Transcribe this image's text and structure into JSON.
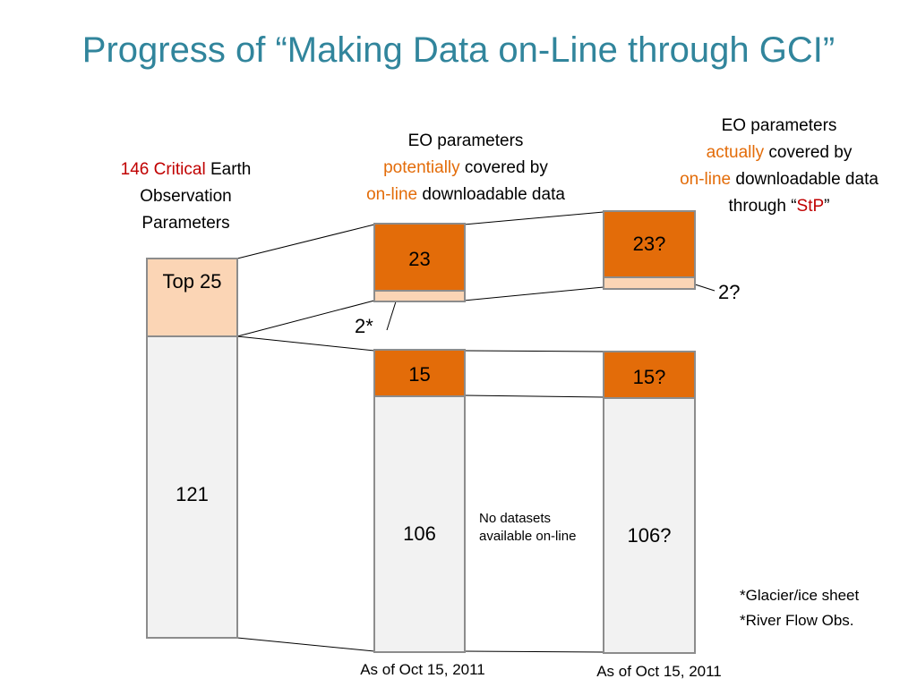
{
  "title": "Progress of “Making Data on-Line through GCI”",
  "left_header": {
    "line1_red": "146 Critical",
    "line1_rest": " Earth",
    "line2": "Observation",
    "line3": "Parameters"
  },
  "mid_header": {
    "line1": "EO parameters",
    "line2_orange": "potentially",
    "line2_rest": " covered by",
    "line3_orange": "on-line",
    "line3_rest": " downloadable data"
  },
  "right_header": {
    "line1": "EO parameters",
    "line2_orange": "actually",
    "line2_rest": " covered by",
    "line3_orange": "on-line",
    "line3_rest": " downloadable data",
    "line4_pre": "through “",
    "line4_red": "StP",
    "line4_post": "”"
  },
  "left_bar": {
    "top_label": "Top 25",
    "bottom_value": "121"
  },
  "mid_top": {
    "orange_value": "23",
    "peach_note": "2*"
  },
  "mid_bottom": {
    "orange_value": "15",
    "gray_value": "106"
  },
  "right_top": {
    "orange_value": "23?",
    "peach_note": "2?"
  },
  "right_bottom": {
    "orange_value": "15?",
    "gray_value": "106?"
  },
  "no_datasets": {
    "line1": "No datasets",
    "line2": "available on-line"
  },
  "footnotes": {
    "line1": "*Glacier/ice sheet",
    "line2": "*River Flow Obs."
  },
  "mid_date": "As of Oct 15, 2011",
  "right_date": "As of Oct 15, 2011",
  "colors": {
    "title": "#31859C",
    "orange": "#E36C09",
    "peach": "#FBD5B5",
    "gray": "#F2F2F2",
    "critical_red": "#C00000"
  }
}
